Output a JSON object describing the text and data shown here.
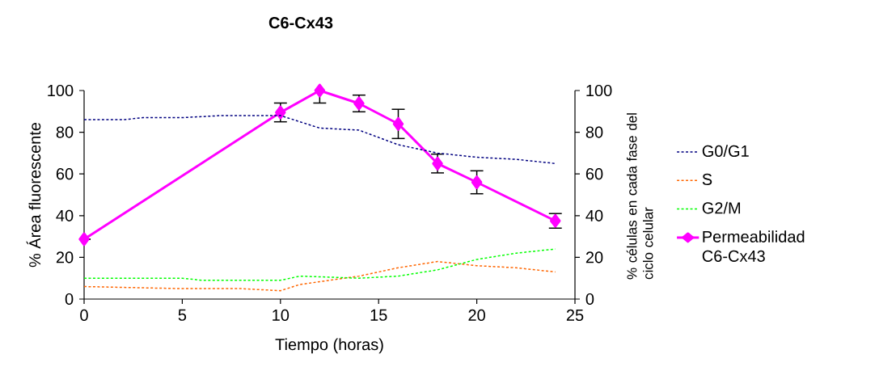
{
  "chart_data": {
    "type": "line",
    "title": "C6-Cx43",
    "xlabel": "Tiempo (horas)",
    "ylabel": "% Área fluorescente",
    "y2label": "% células en cada fase del ciclo celular",
    "xlim": [
      0,
      25
    ],
    "xticks": [
      0,
      5,
      10,
      15,
      20,
      25
    ],
    "ylim": [
      0,
      100
    ],
    "yticks": [
      0,
      20,
      40,
      60,
      80,
      100
    ],
    "y2lim": [
      0,
      100
    ],
    "y2ticks": [
      0,
      20,
      40,
      60,
      80,
      100
    ],
    "legend": "right",
    "grid": false,
    "series": [
      {
        "name": "G0/G1",
        "color": "#000080",
        "axis": "y2",
        "line_style": "dashed",
        "marker": "none",
        "x": [
          0,
          2,
          3,
          5,
          7,
          10,
          11,
          12,
          14,
          16,
          18,
          20,
          22,
          24
        ],
        "values": [
          86,
          86,
          87,
          87,
          88,
          88,
          85,
          82,
          81,
          74,
          70,
          68,
          67,
          65
        ]
      },
      {
        "name": "S",
        "color": "#ff6600",
        "axis": "y2",
        "line_style": "dashed",
        "marker": "none",
        "x": [
          0,
          5,
          8,
          10,
          11,
          14,
          16,
          18,
          20,
          22,
          24
        ],
        "values": [
          6,
          5,
          5,
          4,
          7,
          11,
          15,
          18,
          16,
          15,
          13
        ]
      },
      {
        "name": "G2/M",
        "color": "#00ff00",
        "axis": "y2",
        "line_style": "dashed",
        "marker": "none",
        "x": [
          0,
          5,
          6,
          10,
          11,
          14,
          16,
          18,
          20,
          22,
          24
        ],
        "values": [
          10,
          10,
          9,
          9,
          11,
          10,
          11,
          14,
          19,
          22,
          24
        ]
      },
      {
        "name": "Permeabilidad C6-Cx43",
        "color": "#ff00ff",
        "axis": "y",
        "line_style": "solid",
        "marker": "diamond",
        "x": [
          0,
          10,
          12,
          14,
          16,
          18,
          20,
          24
        ],
        "values": [
          28.7,
          89.5,
          100,
          93.8,
          84,
          65,
          56,
          37.5
        ],
        "errors": [
          null,
          4.5,
          6,
          4,
          7,
          4.5,
          5.5,
          3.5
        ]
      }
    ]
  }
}
